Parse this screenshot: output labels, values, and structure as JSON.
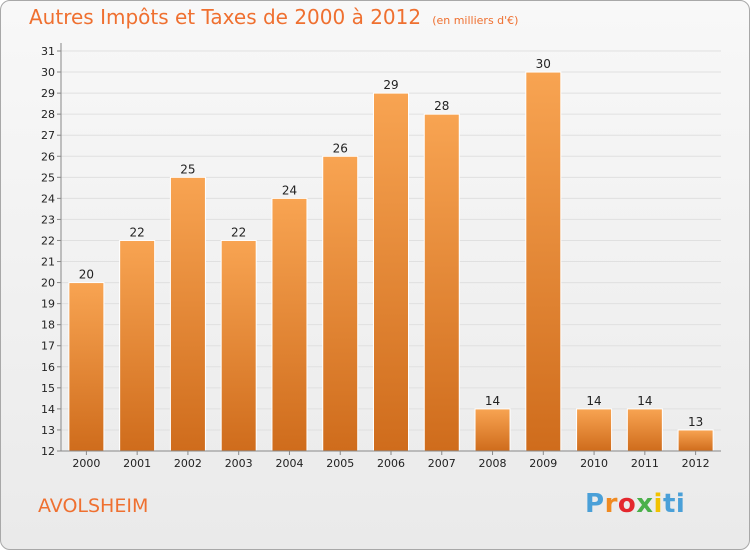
{
  "title": "Autres Impôts et Taxes de 2000 à 2012",
  "subtitle": "(en milliers d'€)",
  "commune": "AVOLSHEIM",
  "logo": {
    "text": "Proxiti",
    "parts": [
      "P",
      "r",
      "o",
      "x",
      "i",
      "ti"
    ]
  },
  "colors": {
    "accent": "#ef7030",
    "bar_top": "#f8a452",
    "bar_bottom": "#cf6c1c",
    "grid": "#e0e0e0",
    "axis": "#888888",
    "text": "#222222"
  },
  "chart_data": {
    "type": "bar",
    "title": "Autres Impôts et Taxes de 2000 à 2012",
    "subtitle": "(en milliers d'€)",
    "categories": [
      "2000",
      "2001",
      "2002",
      "2003",
      "2004",
      "2005",
      "2006",
      "2007",
      "2008",
      "2009",
      "2010",
      "2011",
      "2012"
    ],
    "values": [
      20,
      22,
      25,
      22,
      24,
      26,
      29,
      28,
      14,
      30,
      14,
      14,
      13
    ],
    "data_labels": [
      "20",
      "22",
      "25",
      "22",
      "24",
      "26",
      "29",
      "28",
      "14",
      "30",
      "14",
      "14",
      "13"
    ],
    "ylim": [
      12,
      31
    ],
    "yticks": [
      "12",
      "13",
      "14",
      "15",
      "16",
      "17",
      "18",
      "19",
      "20",
      "21",
      "22",
      "23",
      "24",
      "25",
      "26",
      "27",
      "28",
      "29",
      "30",
      "31"
    ],
    "grid": true,
    "legend": "none"
  }
}
